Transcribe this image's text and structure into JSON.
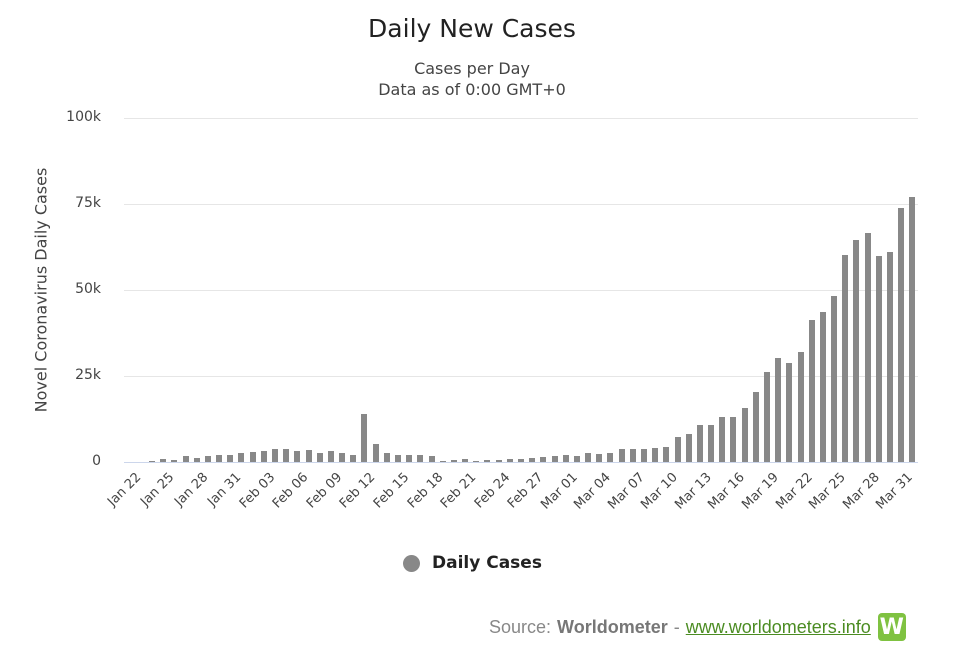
{
  "chart_data": {
    "type": "bar",
    "title": "Daily New Cases",
    "subtitle": [
      "Cases per Day",
      "Data as of 0:00 GMT+0"
    ],
    "xlabel": "",
    "ylabel": "Novel Coronavirus Daily Cases",
    "ylim": [
      0,
      100000
    ],
    "yticks": [
      "0",
      "25k",
      "50k",
      "75k",
      "100k"
    ],
    "grid": true,
    "legend_position": "bottom",
    "xtick_labels": [
      "Jan 22",
      "Jan 25",
      "Jan 28",
      "Jan 31",
      "Feb 03",
      "Feb 06",
      "Feb 09",
      "Feb 12",
      "Feb 15",
      "Feb 18",
      "Feb 21",
      "Feb 24",
      "Feb 27",
      "Mar 01",
      "Mar 04",
      "Mar 07",
      "Mar 10",
      "Mar 13",
      "Mar 16",
      "Mar 19",
      "Mar 22",
      "Mar 25",
      "Mar 28",
      "Mar 31"
    ],
    "categories": [
      "Jan 22",
      "Jan 23",
      "Jan 24",
      "Jan 25",
      "Jan 26",
      "Jan 27",
      "Jan 28",
      "Jan 29",
      "Jan 30",
      "Jan 31",
      "Feb 01",
      "Feb 02",
      "Feb 03",
      "Feb 04",
      "Feb 05",
      "Feb 06",
      "Feb 07",
      "Feb 08",
      "Feb 09",
      "Feb 10",
      "Feb 11",
      "Feb 12",
      "Feb 13",
      "Feb 14",
      "Feb 15",
      "Feb 16",
      "Feb 17",
      "Feb 18",
      "Feb 19",
      "Feb 20",
      "Feb 21",
      "Feb 22",
      "Feb 23",
      "Feb 24",
      "Feb 25",
      "Feb 26",
      "Feb 27",
      "Feb 28",
      "Feb 29",
      "Mar 01",
      "Mar 02",
      "Mar 03",
      "Mar 04",
      "Mar 05",
      "Mar 06",
      "Mar 07",
      "Mar 08",
      "Mar 09",
      "Mar 10",
      "Mar 11",
      "Mar 12",
      "Mar 13",
      "Mar 14",
      "Mar 15",
      "Mar 16",
      "Mar 17",
      "Mar 18",
      "Mar 19",
      "Mar 20",
      "Mar 21",
      "Mar 22",
      "Mar 23",
      "Mar 24",
      "Mar 25",
      "Mar 26",
      "Mar 27",
      "Mar 28",
      "Mar 29",
      "Mar 30",
      "Mar 31",
      "Apr 01"
    ],
    "series": [
      {
        "name": "Daily Cases",
        "color": "#888888",
        "values": [
          0,
          100,
          200,
          800,
          700,
          1700,
          1300,
          1800,
          2000,
          2100,
          2600,
          2800,
          3200,
          3900,
          3700,
          3200,
          3400,
          2700,
          3100,
          2600,
          2000,
          14100,
          5100,
          2600,
          2100,
          2000,
          2100,
          1800,
          400,
          600,
          1000,
          400,
          600,
          500,
          800,
          900,
          1200,
          1400,
          1800,
          1900,
          1800,
          2500,
          2200,
          2700,
          3800,
          3900,
          3900,
          4100,
          4400,
          7300,
          8100,
          10700,
          10700,
          13000,
          13000,
          15600,
          20400,
          26200,
          30200,
          28900,
          32000,
          41200,
          43500,
          48200,
          60300,
          64400,
          66600,
          60000,
          61000,
          73800,
          76900
        ]
      }
    ]
  },
  "legend": {
    "label": "Daily Cases",
    "color": "#888888"
  },
  "footer": {
    "source_prefix": "Source:",
    "source_name": "Worldometer",
    "separator": "-",
    "link_text": "www.worldometers.info",
    "logo_letter": "W"
  }
}
